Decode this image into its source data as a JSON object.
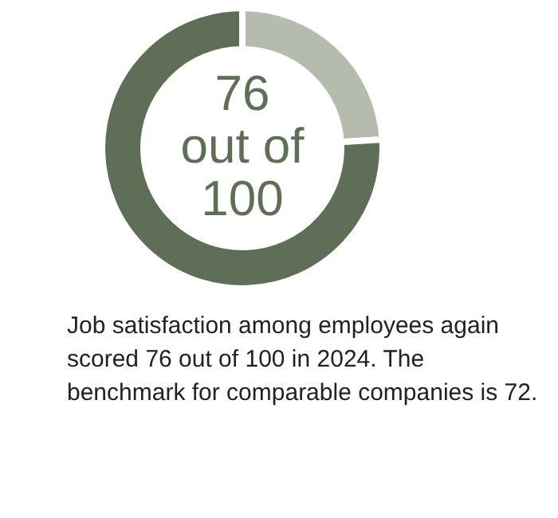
{
  "chart_data": {
    "type": "donut",
    "categories": [
      null,
      null
    ],
    "values": [
      24,
      76
    ],
    "colors": [
      "#b5bbad",
      "#5f6e56"
    ],
    "annotations": [
      "76 out of 100",
      "Job satisfaction among employees again scored 76 out of 100 in 2024. The benchmark for comparable companies is 72."
    ]
  }
}
